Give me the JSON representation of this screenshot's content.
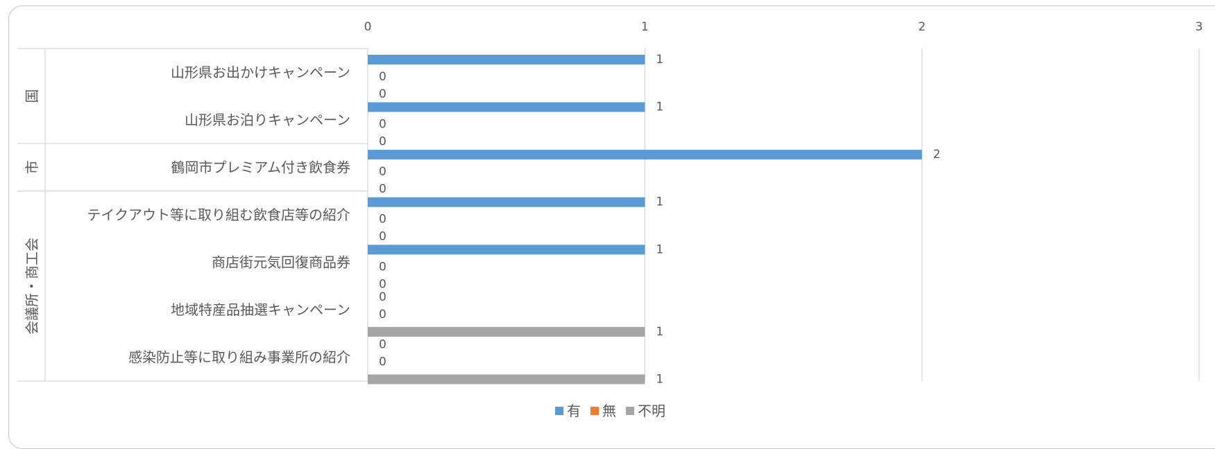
{
  "chart_data": {
    "type": "bar",
    "orientation": "horizontal",
    "xlim": [
      0,
      3
    ],
    "x_ticks": [
      "0",
      "1",
      "2",
      "3"
    ],
    "grid": true,
    "legend_position": "bottom",
    "groups": [
      {
        "label": "国",
        "categories": [
          "山形県お出かけキャンペーン",
          "山形県お泊りキャンペーン"
        ]
      },
      {
        "label": "市",
        "categories": [
          "鶴岡市プレミアム付き飲食券"
        ]
      },
      {
        "label": "会議所・商工会",
        "categories": [
          "テイクアウト等に取り組む飲食店等の紹介",
          "商店街元気回復商品券",
          "地域特産品抽選キャンペーン",
          "感染防止等に取り組み事業所の紹介"
        ]
      }
    ],
    "categories": [
      "山形県お出かけキャンペーン",
      "山形県お泊りキャンペーン",
      "鶴岡市プレミアム付き飲食券",
      "テイクアウト等に取り組む飲食店等の紹介",
      "商店街元気回復商品券",
      "地域特産品抽選キャンペーン",
      "感染防止等に取り組み事業所の紹介"
    ],
    "series": [
      {
        "name": "有",
        "color": "#5b9bd5",
        "values": [
          1,
          1,
          2,
          1,
          1,
          0,
          0
        ]
      },
      {
        "name": "無",
        "color": "#ed7d31",
        "values": [
          0,
          0,
          0,
          0,
          0,
          0,
          0
        ]
      },
      {
        "name": "不明",
        "color": "#a5a5a5",
        "values": [
          0,
          0,
          0,
          0,
          0,
          1,
          1
        ]
      }
    ]
  }
}
